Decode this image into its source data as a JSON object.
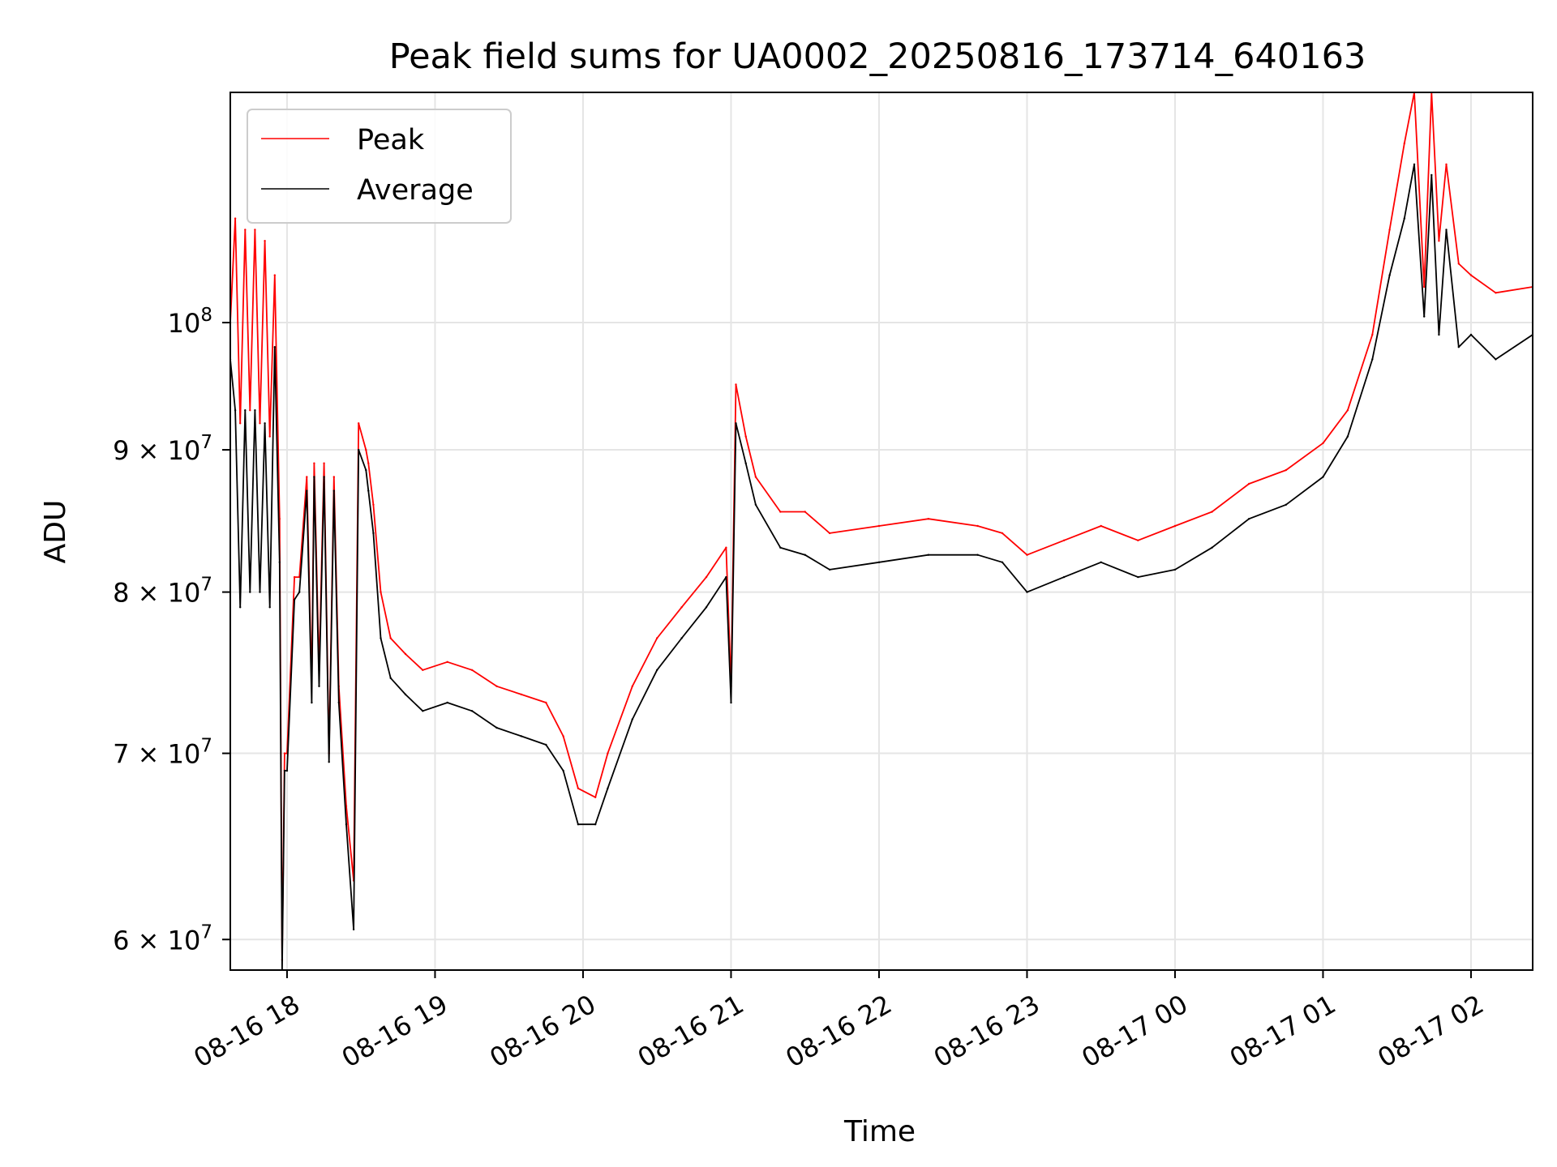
{
  "chart_data": {
    "type": "line",
    "title": "Peak field sums for UA0002_20250816_173714_640163",
    "xlabel": "Time",
    "ylabel": "ADU",
    "x_range": [
      "2025-08-16 17:37",
      "2025-08-17 02:25"
    ],
    "y_scale": "log",
    "ylim": [
      58500000,
      121000000
    ],
    "grid": true,
    "legend_position": "top-left",
    "x_ticks": [
      {
        "t": "2025-08-16 18:00",
        "label": "08-16 18"
      },
      {
        "t": "2025-08-16 19:00",
        "label": "08-16 19"
      },
      {
        "t": "2025-08-16 20:00",
        "label": "08-16 20"
      },
      {
        "t": "2025-08-16 21:00",
        "label": "08-16 21"
      },
      {
        "t": "2025-08-16 22:00",
        "label": "08-16 22"
      },
      {
        "t": "2025-08-16 23:00",
        "label": "08-16 23"
      },
      {
        "t": "2025-08-17 00:00",
        "label": "08-17 00"
      },
      {
        "t": "2025-08-17 01:00",
        "label": "08-17 01"
      },
      {
        "t": "2025-08-17 02:00",
        "label": "08-17 02"
      }
    ],
    "y_ticks": [
      {
        "value": 60000000,
        "mantissa": "6",
        "times": "×",
        "base": "10",
        "exp": "7"
      },
      {
        "value": 70000000,
        "mantissa": "7",
        "times": "×",
        "base": "10",
        "exp": "7"
      },
      {
        "value": 80000000,
        "mantissa": "8",
        "times": "×",
        "base": "10",
        "exp": "7"
      },
      {
        "value": 90000000,
        "mantissa": "9",
        "times": "×",
        "base": "10",
        "exp": "7"
      },
      {
        "value": 100000000,
        "mantissa": "",
        "times": "",
        "base": "10",
        "exp": "8"
      }
    ],
    "series": [
      {
        "name": "Peak",
        "color": "#ff0000",
        "x": [
          "2025-08-16 17:37",
          "2025-08-16 17:39",
          "2025-08-16 17:41",
          "2025-08-16 17:43",
          "2025-08-16 17:45",
          "2025-08-16 17:47",
          "2025-08-16 17:49",
          "2025-08-16 17:51",
          "2025-08-16 17:53",
          "2025-08-16 17:55",
          "2025-08-16 17:57",
          "2025-08-16 17:58",
          "2025-08-16 17:59",
          "2025-08-16 18:00",
          "2025-08-16 18:03",
          "2025-08-16 18:05",
          "2025-08-16 18:08",
          "2025-08-16 18:10",
          "2025-08-16 18:11",
          "2025-08-16 18:13",
          "2025-08-16 18:15",
          "2025-08-16 18:17",
          "2025-08-16 18:19",
          "2025-08-16 18:21",
          "2025-08-16 18:24",
          "2025-08-16 18:27",
          "2025-08-16 18:29",
          "2025-08-16 18:32",
          "2025-08-16 18:33",
          "2025-08-16 18:35",
          "2025-08-16 18:38",
          "2025-08-16 18:42",
          "2025-08-16 18:48",
          "2025-08-16 18:55",
          "2025-08-16 19:05",
          "2025-08-16 19:15",
          "2025-08-16 19:25",
          "2025-08-16 19:35",
          "2025-08-16 19:45",
          "2025-08-16 19:52",
          "2025-08-16 19:58",
          "2025-08-16 20:05",
          "2025-08-16 20:10",
          "2025-08-16 20:20",
          "2025-08-16 20:30",
          "2025-08-16 20:40",
          "2025-08-16 20:50",
          "2025-08-16 20:58",
          "2025-08-16 21:00",
          "2025-08-16 21:02",
          "2025-08-16 21:06",
          "2025-08-16 21:10",
          "2025-08-16 21:20",
          "2025-08-16 21:30",
          "2025-08-16 21:40",
          "2025-08-16 22:00",
          "2025-08-16 22:20",
          "2025-08-16 22:40",
          "2025-08-16 22:50",
          "2025-08-16 23:00",
          "2025-08-16 23:15",
          "2025-08-16 23:30",
          "2025-08-16 23:45",
          "2025-08-17 00:00",
          "2025-08-17 00:15",
          "2025-08-17 00:30",
          "2025-08-17 00:45",
          "2025-08-17 01:00",
          "2025-08-17 01:10",
          "2025-08-17 01:20",
          "2025-08-17 01:27",
          "2025-08-17 01:33",
          "2025-08-17 01:37",
          "2025-08-17 01:41",
          "2025-08-17 01:44",
          "2025-08-17 01:47",
          "2025-08-17 01:50",
          "2025-08-17 01:55",
          "2025-08-17 02:00",
          "2025-08-17 02:10",
          "2025-08-17 02:25"
        ],
        "y": [
          100000000,
          109000000,
          92000000,
          108000000,
          93000000,
          108000000,
          92000000,
          107000000,
          91000000,
          104000000,
          85000000,
          59000000,
          70000000,
          70000000,
          81000000,
          81000000,
          88000000,
          74000000,
          89000000,
          75000000,
          89000000,
          70000000,
          88000000,
          74000000,
          67000000,
          63000000,
          92000000,
          90000000,
          89000000,
          86000000,
          80000000,
          77000000,
          76000000,
          75000000,
          75500000,
          75000000,
          74000000,
          73500000,
          73000000,
          71000000,
          68000000,
          67500000,
          70000000,
          74000000,
          77000000,
          79000000,
          81000000,
          83000000,
          74000000,
          95000000,
          91000000,
          88000000,
          85500000,
          85500000,
          84000000,
          84500000,
          85000000,
          84500000,
          84000000,
          82500000,
          83500000,
          84500000,
          83500000,
          84500000,
          85500000,
          87500000,
          88500000,
          90500000,
          93000000,
          99000000,
          108000000,
          116000000,
          121000000,
          103000000,
          121000000,
          107000000,
          114000000,
          105000000,
          104000000,
          102500000,
          103000000
        ]
      },
      {
        "name": "Average",
        "color": "#000000",
        "x": [
          "2025-08-16 17:37",
          "2025-08-16 17:39",
          "2025-08-16 17:41",
          "2025-08-16 17:43",
          "2025-08-16 17:45",
          "2025-08-16 17:47",
          "2025-08-16 17:49",
          "2025-08-16 17:51",
          "2025-08-16 17:53",
          "2025-08-16 17:55",
          "2025-08-16 17:57",
          "2025-08-16 17:58",
          "2025-08-16 17:59",
          "2025-08-16 18:00",
          "2025-08-16 18:03",
          "2025-08-16 18:05",
          "2025-08-16 18:08",
          "2025-08-16 18:10",
          "2025-08-16 18:11",
          "2025-08-16 18:13",
          "2025-08-16 18:15",
          "2025-08-16 18:17",
          "2025-08-16 18:19",
          "2025-08-16 18:21",
          "2025-08-16 18:24",
          "2025-08-16 18:27",
          "2025-08-16 18:29",
          "2025-08-16 18:32",
          "2025-08-16 18:33",
          "2025-08-16 18:35",
          "2025-08-16 18:38",
          "2025-08-16 18:42",
          "2025-08-16 18:48",
          "2025-08-16 18:55",
          "2025-08-16 19:05",
          "2025-08-16 19:15",
          "2025-08-16 19:25",
          "2025-08-16 19:35",
          "2025-08-16 19:45",
          "2025-08-16 19:52",
          "2025-08-16 19:58",
          "2025-08-16 20:05",
          "2025-08-16 20:10",
          "2025-08-16 20:20",
          "2025-08-16 20:30",
          "2025-08-16 20:40",
          "2025-08-16 20:50",
          "2025-08-16 20:58",
          "2025-08-16 21:00",
          "2025-08-16 21:02",
          "2025-08-16 21:06",
          "2025-08-16 21:10",
          "2025-08-16 21:20",
          "2025-08-16 21:30",
          "2025-08-16 21:40",
          "2025-08-16 22:00",
          "2025-08-16 22:20",
          "2025-08-16 22:40",
          "2025-08-16 22:50",
          "2025-08-16 23:00",
          "2025-08-16 23:15",
          "2025-08-16 23:30",
          "2025-08-16 23:45",
          "2025-08-17 00:00",
          "2025-08-17 00:15",
          "2025-08-17 00:30",
          "2025-08-17 00:45",
          "2025-08-17 01:00",
          "2025-08-17 01:10",
          "2025-08-17 01:20",
          "2025-08-17 01:27",
          "2025-08-17 01:33",
          "2025-08-17 01:37",
          "2025-08-17 01:41",
          "2025-08-17 01:44",
          "2025-08-17 01:47",
          "2025-08-17 01:50",
          "2025-08-17 01:55",
          "2025-08-17 02:00",
          "2025-08-17 02:10",
          "2025-08-17 02:25"
        ],
        "y": [
          97000000,
          93000000,
          79000000,
          93000000,
          80000000,
          93000000,
          80000000,
          92000000,
          79000000,
          98000000,
          82000000,
          58500000,
          69000000,
          69000000,
          79500000,
          80000000,
          87000000,
          73000000,
          88000000,
          74000000,
          88000000,
          69500000,
          87000000,
          73000000,
          66000000,
          60500000,
          90000000,
          88500000,
          87000000,
          84000000,
          77000000,
          74500000,
          73500000,
          72500000,
          73000000,
          72500000,
          71500000,
          71000000,
          70500000,
          69000000,
          66000000,
          66000000,
          68000000,
          72000000,
          75000000,
          77000000,
          79000000,
          81000000,
          73000000,
          92000000,
          89000000,
          86000000,
          83000000,
          82500000,
          81500000,
          82000000,
          82500000,
          82500000,
          82000000,
          80000000,
          81000000,
          82000000,
          81000000,
          81500000,
          83000000,
          85000000,
          86000000,
          88000000,
          91000000,
          97000000,
          104000000,
          109000000,
          114000000,
          100500000,
          113000000,
          99000000,
          108000000,
          98000000,
          99000000,
          97000000,
          99000000
        ]
      }
    ]
  }
}
